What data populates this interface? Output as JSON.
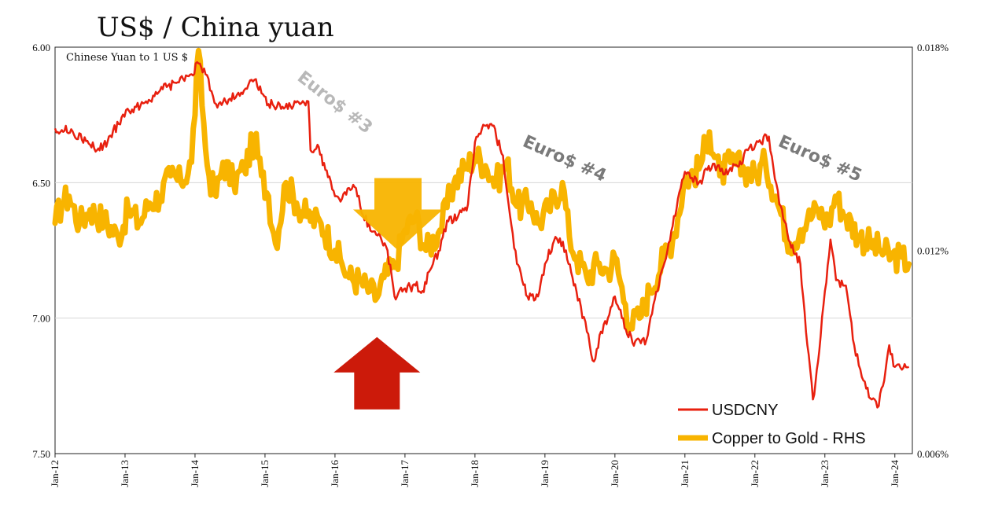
{
  "chart_data": {
    "type": "line",
    "title": "US$ / China yuan",
    "subtitle": "Chinese Yuan to 1 US $",
    "x_labels": [
      "Jan-12",
      "Jan-13",
      "Jan-14",
      "Jan-15",
      "Jan-16",
      "Jan-17",
      "Jan-18",
      "Jan-19",
      "Jan-20",
      "Jan-21",
      "Jan-22",
      "Jan-23",
      "Jan-24"
    ],
    "x_range": [
      2012.0,
      2024.25
    ],
    "left_axis": {
      "inverted": true,
      "ylim": [
        6.0,
        7.5
      ],
      "tick_values": [
        6.0,
        6.5,
        7.0,
        7.5
      ],
      "tick_labels": [
        "6.00",
        "6.50",
        "7.00",
        "7.50"
      ]
    },
    "right_axis": {
      "ylim": [
        0.018,
        0.006
      ],
      "tick_values": [
        0.018,
        0.012,
        0.006
      ],
      "tick_labels": [
        "0.018%",
        "0.012%",
        "0.006%"
      ]
    },
    "gridlines": "horizontal",
    "series": [
      {
        "name": "USDCNY",
        "axis": "left",
        "color": "#e8200f",
        "points": [
          [
            2012.0,
            6.3
          ],
          [
            2012.25,
            6.31
          ],
          [
            2012.5,
            6.36
          ],
          [
            2012.6,
            6.38
          ],
          [
            2012.75,
            6.35
          ],
          [
            2012.95,
            6.26
          ],
          [
            2013.1,
            6.23
          ],
          [
            2013.3,
            6.2
          ],
          [
            2013.5,
            6.16
          ],
          [
            2013.75,
            6.13
          ],
          [
            2013.95,
            6.1
          ],
          [
            2014.05,
            6.06
          ],
          [
            2014.15,
            6.1
          ],
          [
            2014.3,
            6.21
          ],
          [
            2014.5,
            6.19
          ],
          [
            2014.7,
            6.16
          ],
          [
            2014.85,
            6.12
          ],
          [
            2014.95,
            6.17
          ],
          [
            2015.05,
            6.21
          ],
          [
            2015.25,
            6.22
          ],
          [
            2015.5,
            6.21
          ],
          [
            2015.62,
            6.2
          ],
          [
            2015.65,
            6.38
          ],
          [
            2015.75,
            6.36
          ],
          [
            2015.9,
            6.48
          ],
          [
            2016.0,
            6.55
          ],
          [
            2016.1,
            6.56
          ],
          [
            2016.2,
            6.52
          ],
          [
            2016.3,
            6.52
          ],
          [
            2016.4,
            6.62
          ],
          [
            2016.55,
            6.68
          ],
          [
            2016.65,
            6.7
          ],
          [
            2016.75,
            6.75
          ],
          [
            2016.85,
            6.92
          ],
          [
            2017.0,
            6.89
          ],
          [
            2017.15,
            6.88
          ],
          [
            2017.25,
            6.9
          ],
          [
            2017.4,
            6.8
          ],
          [
            2017.5,
            6.75
          ],
          [
            2017.6,
            6.64
          ],
          [
            2017.75,
            6.63
          ],
          [
            2017.9,
            6.58
          ],
          [
            2018.0,
            6.35
          ],
          [
            2018.1,
            6.3
          ],
          [
            2018.25,
            6.29
          ],
          [
            2018.4,
            6.4
          ],
          [
            2018.5,
            6.62
          ],
          [
            2018.6,
            6.8
          ],
          [
            2018.75,
            6.92
          ],
          [
            2018.9,
            6.92
          ],
          [
            2019.0,
            6.8
          ],
          [
            2019.15,
            6.7
          ],
          [
            2019.3,
            6.75
          ],
          [
            2019.45,
            6.9
          ],
          [
            2019.6,
            7.05
          ],
          [
            2019.7,
            7.16
          ],
          [
            2019.8,
            7.05
          ],
          [
            2019.9,
            7.0
          ],
          [
            2020.0,
            6.92
          ],
          [
            2020.1,
            7.0
          ],
          [
            2020.25,
            7.09
          ],
          [
            2020.45,
            7.08
          ],
          [
            2020.55,
            6.95
          ],
          [
            2020.75,
            6.75
          ],
          [
            2020.9,
            6.56
          ],
          [
            2021.0,
            6.46
          ],
          [
            2021.2,
            6.5
          ],
          [
            2021.4,
            6.43
          ],
          [
            2021.55,
            6.47
          ],
          [
            2021.75,
            6.44
          ],
          [
            2021.9,
            6.38
          ],
          [
            2022.05,
            6.35
          ],
          [
            2022.2,
            6.33
          ],
          [
            2022.35,
            6.58
          ],
          [
            2022.5,
            6.72
          ],
          [
            2022.65,
            6.8
          ],
          [
            2022.75,
            7.1
          ],
          [
            2022.83,
            7.3
          ],
          [
            2022.92,
            7.12
          ],
          [
            2023.0,
            6.9
          ],
          [
            2023.08,
            6.71
          ],
          [
            2023.16,
            6.86
          ],
          [
            2023.3,
            6.88
          ],
          [
            2023.42,
            7.1
          ],
          [
            2023.55,
            7.23
          ],
          [
            2023.67,
            7.3
          ],
          [
            2023.75,
            7.33
          ],
          [
            2023.83,
            7.25
          ],
          [
            2023.92,
            7.1
          ],
          [
            2024.0,
            7.18
          ],
          [
            2024.1,
            7.19
          ],
          [
            2024.2,
            7.18
          ]
        ]
      },
      {
        "name": "Copper to Gold - RHS",
        "axis": "right",
        "color": "#f8b400",
        "points": [
          [
            2012.0,
            0.0128
          ],
          [
            2012.1,
            0.0134
          ],
          [
            2012.2,
            0.0136
          ],
          [
            2012.35,
            0.0128
          ],
          [
            2012.5,
            0.0132
          ],
          [
            2012.7,
            0.0129
          ],
          [
            2012.9,
            0.0124
          ],
          [
            2013.05,
            0.0132
          ],
          [
            2013.2,
            0.0128
          ],
          [
            2013.35,
            0.0134
          ],
          [
            2013.5,
            0.0136
          ],
          [
            2013.65,
            0.0142
          ],
          [
            2013.8,
            0.014
          ],
          [
            2013.95,
            0.0146
          ],
          [
            2014.05,
            0.0179
          ],
          [
            2014.15,
            0.015
          ],
          [
            2014.2,
            0.0142
          ],
          [
            2014.3,
            0.0136
          ],
          [
            2014.4,
            0.0146
          ],
          [
            2014.55,
            0.014
          ],
          [
            2014.7,
            0.0144
          ],
          [
            2014.85,
            0.0153
          ],
          [
            2014.95,
            0.0142
          ],
          [
            2015.05,
            0.0136
          ],
          [
            2015.15,
            0.0122
          ],
          [
            2015.3,
            0.014
          ],
          [
            2015.45,
            0.0134
          ],
          [
            2015.6,
            0.013
          ],
          [
            2015.8,
            0.0128
          ],
          [
            2016.0,
            0.012
          ],
          [
            2016.1,
            0.0116
          ],
          [
            2016.2,
            0.0112
          ],
          [
            2016.35,
            0.0111
          ],
          [
            2016.5,
            0.0108
          ],
          [
            2016.6,
            0.0106
          ],
          [
            2016.7,
            0.0112
          ],
          [
            2016.85,
            0.0115
          ],
          [
            2017.0,
            0.0126
          ],
          [
            2017.15,
            0.013
          ],
          [
            2017.3,
            0.012
          ],
          [
            2017.5,
            0.0126
          ],
          [
            2017.7,
            0.014
          ],
          [
            2017.85,
            0.0144
          ],
          [
            2018.0,
            0.0148
          ],
          [
            2018.15,
            0.0145
          ],
          [
            2018.3,
            0.014
          ],
          [
            2018.45,
            0.0146
          ],
          [
            2018.6,
            0.0133
          ],
          [
            2018.8,
            0.0134
          ],
          [
            2018.9,
            0.0128
          ],
          [
            2019.05,
            0.0132
          ],
          [
            2019.25,
            0.014
          ],
          [
            2019.35,
            0.0124
          ],
          [
            2019.45,
            0.0118
          ],
          [
            2019.6,
            0.0112
          ],
          [
            2019.75,
            0.0116
          ],
          [
            2019.9,
            0.0114
          ],
          [
            2020.0,
            0.0118
          ],
          [
            2020.15,
            0.0104
          ],
          [
            2020.22,
            0.0098
          ],
          [
            2020.35,
            0.01
          ],
          [
            2020.5,
            0.0108
          ],
          [
            2020.7,
            0.0118
          ],
          [
            2020.85,
            0.0125
          ],
          [
            2021.0,
            0.0141
          ],
          [
            2021.2,
            0.0144
          ],
          [
            2021.35,
            0.0155
          ],
          [
            2021.5,
            0.0142
          ],
          [
            2021.65,
            0.0146
          ],
          [
            2021.85,
            0.0144
          ],
          [
            2022.0,
            0.0142
          ],
          [
            2022.15,
            0.0146
          ],
          [
            2022.3,
            0.0136
          ],
          [
            2022.5,
            0.0122
          ],
          [
            2022.65,
            0.0126
          ],
          [
            2022.75,
            0.0129
          ],
          [
            2022.9,
            0.0132
          ],
          [
            2023.05,
            0.0128
          ],
          [
            2023.15,
            0.0136
          ],
          [
            2023.3,
            0.013
          ],
          [
            2023.5,
            0.0124
          ],
          [
            2023.65,
            0.0122
          ],
          [
            2023.8,
            0.012
          ],
          [
            2023.95,
            0.0118
          ],
          [
            2024.1,
            0.0118
          ],
          [
            2024.2,
            0.0116
          ]
        ]
      }
    ],
    "annotations": [
      {
        "text": "Euro$ #3",
        "x": 2015.95,
        "y": 6.22,
        "color": "#b8b8b8",
        "rotation": 38
      },
      {
        "text": "Euro$ #4",
        "x": 2019.25,
        "y": 6.43,
        "color": "#7a7a7a",
        "rotation": 24
      },
      {
        "text": "Euro$ #5",
        "x": 2022.9,
        "y": 6.43,
        "color": "#7a7a7a",
        "rotation": 24
      },
      {
        "shape": "down-arrow",
        "x": 2016.9,
        "y": 6.75,
        "color": "#f8b400"
      },
      {
        "shape": "up-arrow",
        "x": 2016.6,
        "y": 7.07,
        "color": "#cc1a0a"
      }
    ],
    "legend": {
      "placement": "bottom-right",
      "entries": [
        "USDCNY",
        "Copper to Gold - RHS"
      ]
    }
  }
}
